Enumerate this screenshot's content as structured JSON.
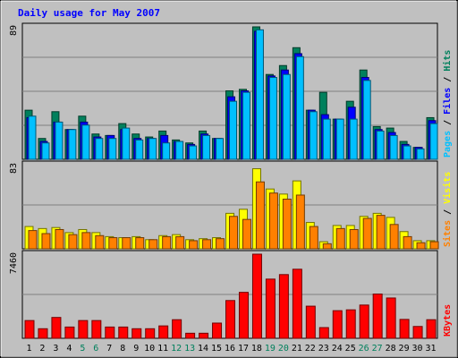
{
  "chart_data": {
    "type": "bar",
    "title": "Daily usage for May 2007",
    "categories": [
      "1",
      "2",
      "3",
      "4",
      "5",
      "6",
      "7",
      "8",
      "9",
      "10",
      "11",
      "12",
      "13",
      "14",
      "15",
      "16",
      "17",
      "18",
      "19",
      "20",
      "21",
      "22",
      "23",
      "24",
      "25",
      "26",
      "27",
      "28",
      "29",
      "30",
      "31"
    ],
    "weekend_days": [
      "5",
      "6",
      "12",
      "13",
      "19",
      "20",
      "26",
      "27"
    ],
    "colors": {
      "background": "#c0c0c0",
      "title": "#0000ff",
      "hits": "#00805c",
      "files": "#0000ff",
      "pages": "#00c0ff",
      "visits": "#ffff00",
      "sites": "#ff8000",
      "kbytes": "#ff0000",
      "weekday_label": "#000000",
      "weekend_label": "#00805c"
    },
    "panels": [
      {
        "max_label": "89",
        "ylim": [
          0,
          89
        ],
        "legend": [
          {
            "text": "Pages",
            "color": "#00c0ff"
          },
          {
            "text": " / ",
            "color": "#000000"
          },
          {
            "text": "Files",
            "color": "#0000ff"
          },
          {
            "text": " / ",
            "color": "#000000"
          },
          {
            "text": "Hits",
            "color": "#00805c"
          }
        ],
        "series": [
          {
            "name": "Hits",
            "color": "#00805c",
            "values": [
              33,
              14,
              32,
              20,
              29,
              17,
              16,
              24,
              17,
              15,
              19,
              13,
              11,
              19,
              14,
              46,
              47,
              89,
              57,
              63,
              75,
              33,
              45,
              27,
              39,
              60,
              22,
              21,
              12,
              8,
              28
            ]
          },
          {
            "name": "Files",
            "color": "#0000ff",
            "values": [
              28,
              12,
              25,
              20,
              25,
              15,
              16,
              20,
              14,
              14,
              16,
              12,
              10,
              17,
              14,
              42,
              46,
              86,
              56,
              60,
              71,
              33,
              30,
              27,
              35,
              55,
              20,
              18,
              10,
              8,
              26
            ]
          },
          {
            "name": "Pages",
            "color": "#00c0ff",
            "values": [
              29,
              11,
              25,
              20,
              23,
              14,
              14,
              21,
              13,
              14,
              11,
              12,
              9,
              16,
              14,
              39,
              45,
              87,
              55,
              57,
              69,
              32,
              27,
              27,
              27,
              53,
              19,
              16,
              9,
              7,
              24
            ]
          }
        ]
      },
      {
        "max_label": "83",
        "ylim": [
          0,
          83
        ],
        "legend": [
          {
            "text": "Sites",
            "color": "#ff8000"
          },
          {
            "text": " / ",
            "color": "#000000"
          },
          {
            "text": "Visits",
            "color": "#ffff00"
          }
        ],
        "series": [
          {
            "name": "Visits",
            "color": "#ffff00",
            "values": [
              22,
              20,
              21,
              16,
              19,
              16,
              12,
              11,
              12,
              9,
              13,
              14,
              9,
              10,
              11,
              35,
              39,
              79,
              59,
              54,
              67,
              26,
              7,
              23,
              23,
              32,
              35,
              31,
              17,
              8,
              8
            ]
          },
          {
            "name": "Sites",
            "color": "#ff8000",
            "values": [
              18,
              15,
              19,
              14,
              16,
              13,
              11,
              11,
              11,
              9,
              12,
              12,
              8,
              9,
              10,
              32,
              29,
              66,
              55,
              49,
              53,
              22,
              5,
              20,
              19,
              30,
              33,
              24,
              12,
              6,
              7
            ]
          }
        ]
      },
      {
        "max_label": "7460",
        "ylim": [
          0,
          7460
        ],
        "legend": [
          {
            "text": "KBytes",
            "color": "#ff0000"
          }
        ],
        "series": [
          {
            "name": "KBytes",
            "color": "#ff0000",
            "values": [
              1575,
              850,
              1850,
              1000,
              1575,
              1575,
              1000,
              1000,
              850,
              850,
              1100,
              1650,
              450,
              450,
              1350,
              3350,
              4075,
              7460,
              5250,
              5650,
              6125,
              2850,
              950,
              2450,
              2525,
              2950,
              3925,
              3575,
              1675,
              1050,
              1650
            ]
          }
        ]
      }
    ]
  }
}
